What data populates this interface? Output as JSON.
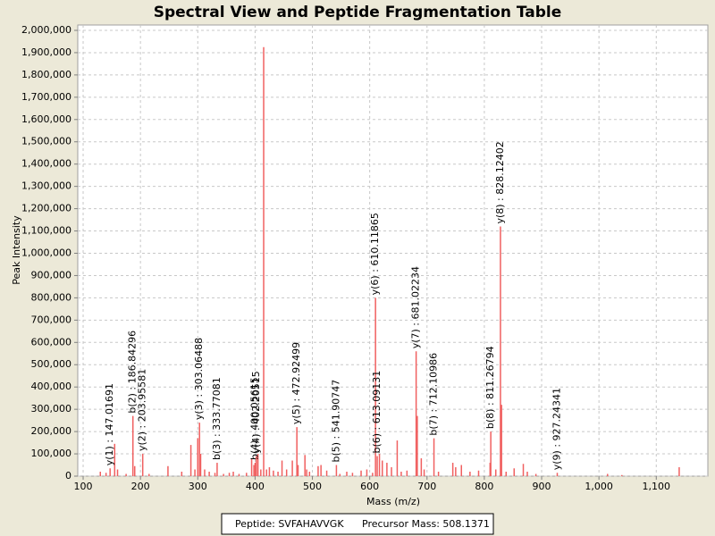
{
  "chart_data": {
    "type": "spectrum",
    "title": "Spectral View and Peptide Fragmentation Table",
    "x_label": "Mass (m/z)",
    "y_label": "Peak Intensity",
    "color": "#f06060",
    "grid": true,
    "xlim": [
      90.6,
      1190
    ],
    "ylim": [
      0,
      2024000
    ],
    "xticks": [
      100,
      200,
      300,
      400,
      500,
      600,
      700,
      800,
      900,
      {
        "value": 1000,
        "label": "1,000"
      },
      {
        "value": 1100,
        "label": "1,100"
      }
    ],
    "yticks": [
      0,
      {
        "value": 100000,
        "label": "100,000"
      },
      {
        "value": 200000,
        "label": "200,000"
      },
      {
        "value": 300000,
        "label": "300,000"
      },
      {
        "value": 400000,
        "label": "400,000"
      },
      {
        "value": 500000,
        "label": "500,000"
      },
      {
        "value": 600000,
        "label": "600,000"
      },
      {
        "value": 700000,
        "label": "700,000"
      },
      {
        "value": 800000,
        "label": "800,000"
      },
      {
        "value": 900000,
        "label": "900,000"
      },
      {
        "value": 1000000,
        "label": "1,000,000"
      },
      {
        "value": 1100000,
        "label": "1,100,000"
      },
      {
        "value": 1200000,
        "label": "1,200,000"
      },
      {
        "value": 1300000,
        "label": "1,300,000"
      },
      {
        "value": 1400000,
        "label": "1,400,000"
      },
      {
        "value": 1500000,
        "label": "1,500,000"
      },
      {
        "value": 1600000,
        "label": "1,600,000"
      },
      {
        "value": 1700000,
        "label": "1,700,000"
      },
      {
        "value": 1800000,
        "label": "1,800,000"
      },
      {
        "value": 1900000,
        "label": "1,900,000"
      },
      {
        "value": 2000000,
        "label": "2,000,000"
      }
    ],
    "x": [
      130,
      140,
      155,
      160,
      175,
      190,
      215,
      248,
      272,
      288,
      295,
      300,
      305,
      312,
      320,
      330,
      345,
      355,
      362,
      372,
      385,
      394,
      398,
      405,
      410,
      415,
      420,
      425,
      432,
      440,
      447,
      455,
      465,
      475,
      487,
      490,
      495,
      510,
      515,
      525,
      548,
      560,
      570,
      585,
      595,
      605,
      617,
      622,
      630,
      638,
      648,
      655,
      665,
      683,
      690,
      695,
      720,
      745,
      750,
      760,
      775,
      790,
      810,
      820,
      830,
      838,
      852,
      868,
      875,
      890,
      1015,
      1040,
      1140
    ],
    "values": [
      20000,
      15000,
      145000,
      30000,
      10000,
      45000,
      10000,
      45000,
      20000,
      140000,
      30000,
      170000,
      100000,
      30000,
      20000,
      15000,
      10000,
      15000,
      20000,
      10000,
      15000,
      80000,
      50000,
      100000,
      30000,
      1925000,
      30000,
      40000,
      25000,
      20000,
      70000,
      30000,
      70000,
      50000,
      95000,
      30000,
      20000,
      45000,
      50000,
      25000,
      10000,
      20000,
      15000,
      25000,
      30000,
      15000,
      100000,
      70000,
      60000,
      40000,
      160000,
      20000,
      25000,
      270000,
      80000,
      30000,
      20000,
      60000,
      40000,
      50000,
      20000,
      25000,
      60000,
      30000,
      320000,
      20000,
      35000,
      55000,
      20000,
      10000,
      10000,
      5000,
      40000
    ],
    "annotations": [
      {
        "text": "y(1) : 147.01691",
        "x": 147.01691,
        "value": 35000
      },
      {
        "text": "b(2) : 186.84296",
        "x": 186.84296,
        "value": 270000
      },
      {
        "text": "y(2) : 203.95581",
        "x": 203.95581,
        "value": 100000
      },
      {
        "text": "y(3) : 303.06488",
        "x": 303.06488,
        "value": 240000
      },
      {
        "text": "b(3) : 333.77081",
        "x": 333.77081,
        "value": 60000
      },
      {
        "text": "b(4) : 400.05615",
        "x": 400.05615,
        "value": 60000
      },
      {
        "text": "y(4) : 402.20515",
        "x": 402.20515,
        "value": 90000
      },
      {
        "text": "y(5) : 472.92499",
        "x": 472.92499,
        "value": 220000
      },
      {
        "text": "b(5) : 541.90747",
        "x": 541.90747,
        "value": 50000
      },
      {
        "text": "y(6) : 610.11865",
        "x": 610.11865,
        "value": 800000
      },
      {
        "text": "b(6) : 613.09131",
        "x": 613.09131,
        "value": 90000
      },
      {
        "text": "y(7) : 681.02234",
        "x": 681.02234,
        "value": 560000
      },
      {
        "text": "b(7) : 712.10986",
        "x": 712.10986,
        "value": 170000
      },
      {
        "text": "b(8) : 811.26794",
        "x": 811.26794,
        "value": 200000
      },
      {
        "text": "y(8) : 828.12402",
        "x": 828.12402,
        "value": 1120000
      },
      {
        "text": "y(9) : 927.24341",
        "x": 927.24341,
        "value": 15000
      }
    ],
    "footer": {
      "peptide": "Peptide: SVFAHAVVGK",
      "precursor": "Precursor Mass: 508.1371"
    }
  }
}
